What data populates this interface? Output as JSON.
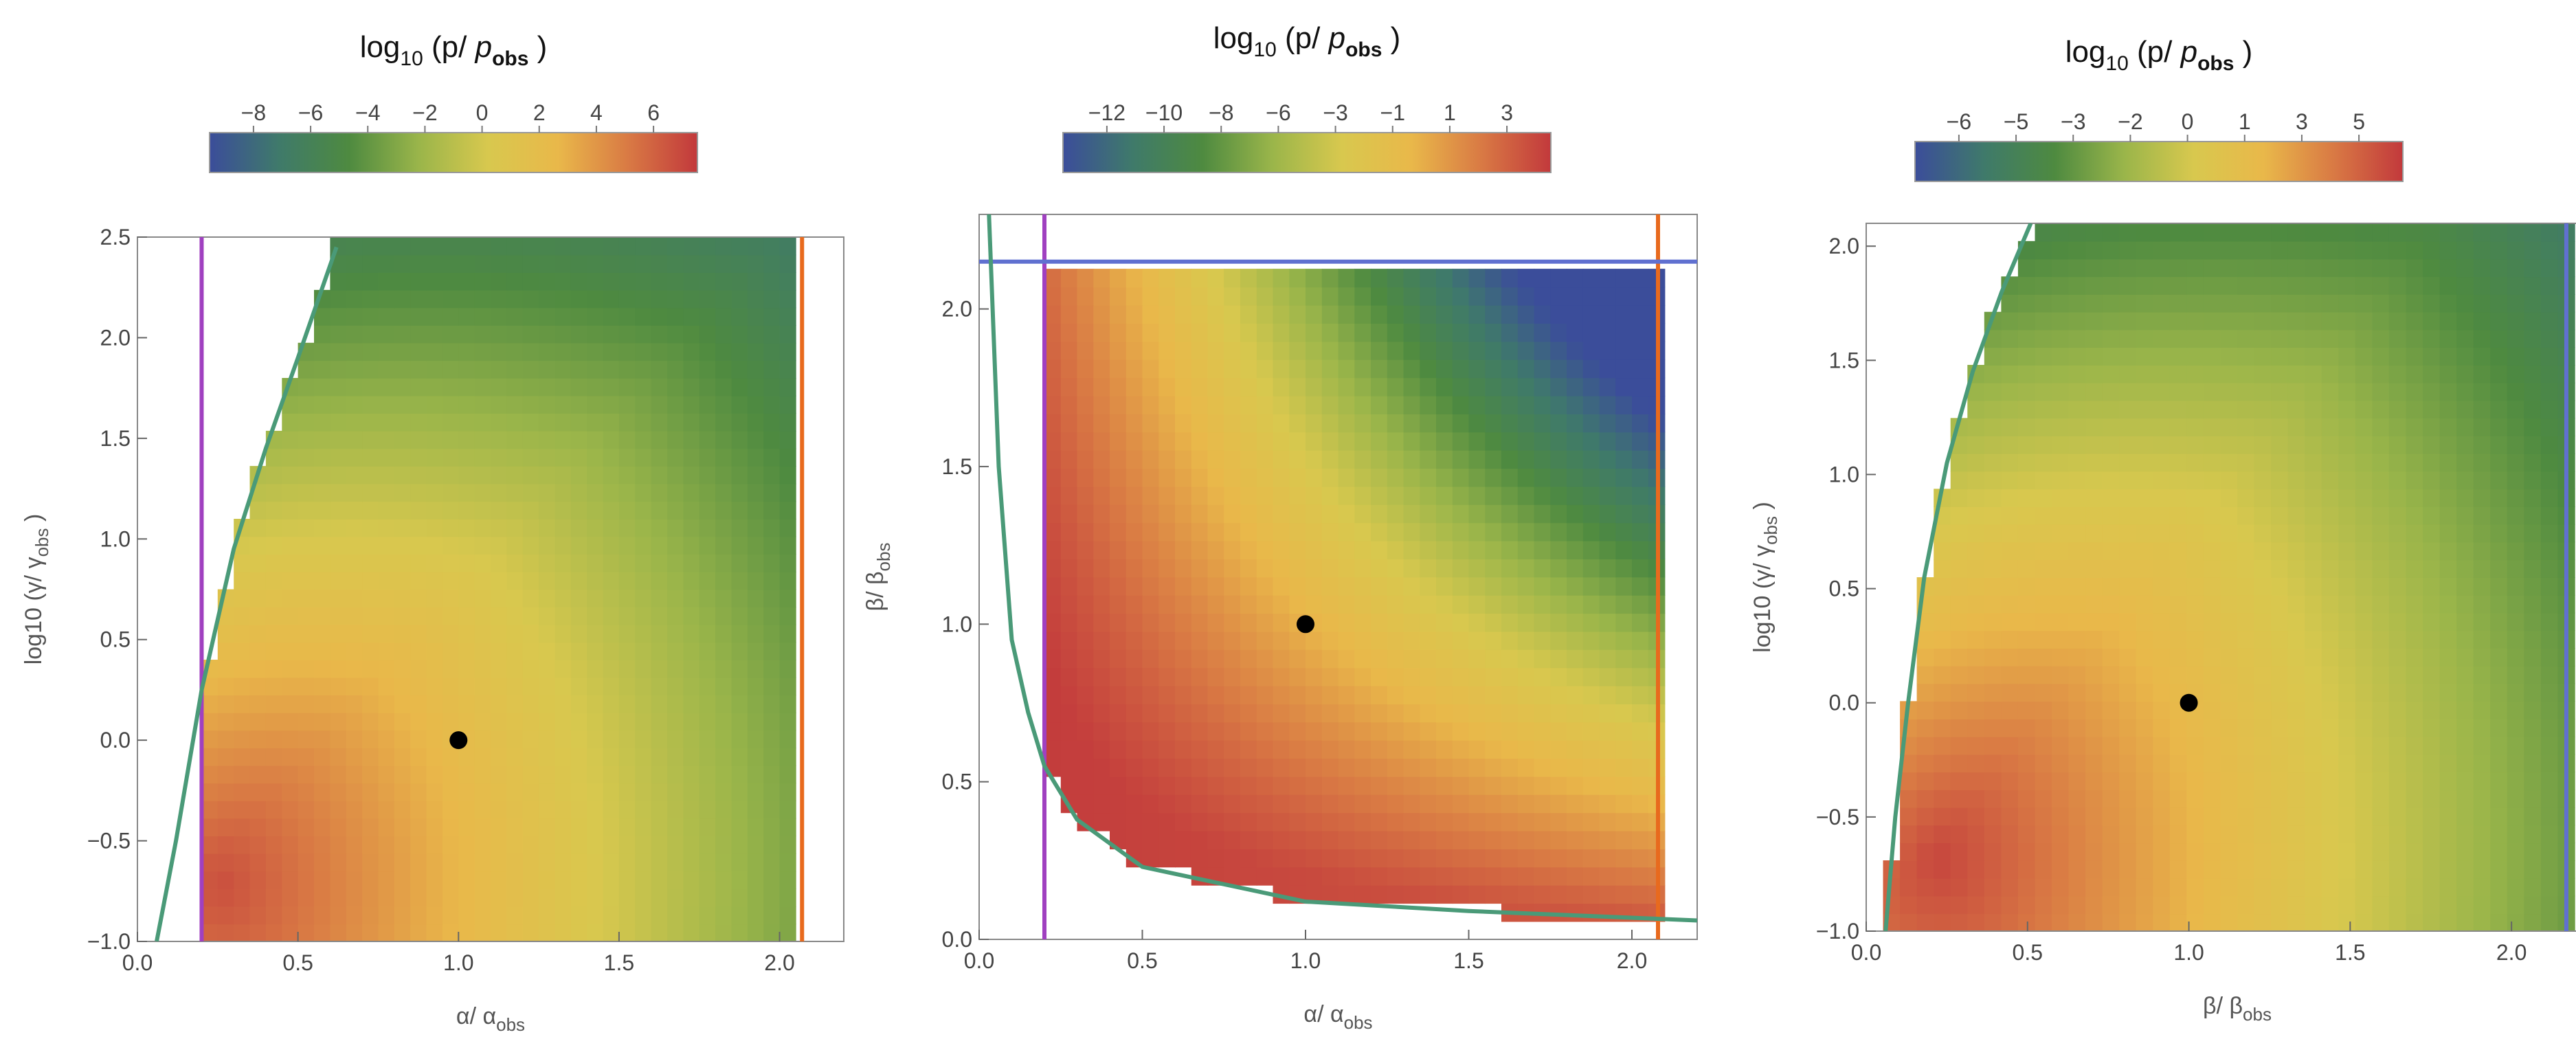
{
  "chart_data": [
    {
      "type": "heatmap",
      "colorbar": {
        "title": "log10 (p/ pobs )",
        "title_parts": {
          "prefix": "log",
          "sub": "10",
          "mid": " (p/ ",
          "italic": "p",
          "sub2": "obs",
          "suffix": " )"
        },
        "ticks": [
          "−8",
          "−6",
          "−4",
          "−2",
          "0",
          "2",
          "4",
          "6"
        ],
        "range": [
          -9.5,
          7.5
        ]
      },
      "xlabel": {
        "main": "α/ α",
        "sub": "obs"
      },
      "ylabel": {
        "main": "log10 (γ/ γ",
        "sub": "obs",
        "suffix": " )"
      },
      "xlim": [
        0.0,
        2.2
      ],
      "ylim": [
        -1.0,
        2.5
      ],
      "xticks": [
        "0.0",
        "0.5",
        "1.0",
        "1.5",
        "2.0"
      ],
      "yticks": [
        "−1.0",
        "−0.5",
        "0.0",
        "0.5",
        "1.0",
        "1.5",
        "2.0",
        "2.5"
      ],
      "reference_point": {
        "x": 1.0,
        "y": 0.0
      },
      "bounds": {
        "vertical_lines": [
          {
            "x": 0.2,
            "color": "#a040c0"
          },
          {
            "x": 2.07,
            "color": "#e86a1e"
          }
        ],
        "boundary_curve": {
          "color": "#4a9a78",
          "points": [
            [
              0.06,
              -1.0
            ],
            [
              0.12,
              -0.5
            ],
            [
              0.2,
              0.25
            ],
            [
              0.3,
              0.95
            ],
            [
              0.4,
              1.45
            ],
            [
              0.5,
              1.9
            ],
            [
              0.62,
              2.45
            ]
          ]
        }
      }
    },
    {
      "type": "heatmap",
      "colorbar": {
        "title": "log10 (p/ pobs )",
        "title_parts": {
          "prefix": "log",
          "sub": "10",
          "mid": " (p/ ",
          "italic": "p",
          "sub2": "obs",
          "suffix": " )"
        },
        "ticks": [
          "−12",
          "−10",
          "−8",
          "−6",
          "−3",
          "−1",
          "1",
          "3"
        ],
        "range": [
          -14,
          4.5
        ]
      },
      "xlabel": {
        "main": "α/ α",
        "sub": "obs"
      },
      "ylabel": {
        "main": "β/ β",
        "sub": "obs",
        "suffix": ""
      },
      "xlim": [
        0.0,
        2.2
      ],
      "ylim": [
        0.0,
        2.3
      ],
      "xticks": [
        "0.0",
        "0.5",
        "1.0",
        "1.5",
        "2.0"
      ],
      "yticks": [
        "0.0",
        "0.5",
        "1.0",
        "1.5",
        "2.0"
      ],
      "reference_point": {
        "x": 1.0,
        "y": 1.0
      },
      "bounds": {
        "vertical_lines": [
          {
            "x": 0.2,
            "color": "#a040c0"
          },
          {
            "x": 2.08,
            "color": "#e86a1e"
          }
        ],
        "horizontal_lines": [
          {
            "y": 2.15,
            "color": "#6070d0"
          }
        ],
        "boundary_curve": {
          "color": "#4a9a78",
          "points": [
            [
              0.03,
              2.3
            ],
            [
              0.06,
              1.5
            ],
            [
              0.1,
              0.95
            ],
            [
              0.15,
              0.72
            ],
            [
              0.2,
              0.55
            ],
            [
              0.3,
              0.38
            ],
            [
              0.5,
              0.23
            ],
            [
              1.0,
              0.12
            ],
            [
              1.5,
              0.09
            ],
            [
              2.2,
              0.06
            ]
          ]
        }
      }
    },
    {
      "type": "heatmap",
      "colorbar": {
        "title": "log10 (p/ pobs )",
        "title_parts": {
          "prefix": "log",
          "sub": "10",
          "mid": " (p/ ",
          "italic": "p",
          "sub2": "obs",
          "suffix": " )"
        },
        "ticks": [
          "−6",
          "−5",
          "−3",
          "−2",
          "0",
          "1",
          "3",
          "5"
        ],
        "range": [
          -7,
          6.5
        ]
      },
      "xlabel": {
        "main": "β/ β",
        "sub": "obs"
      },
      "ylabel": {
        "main": "log10 (γ/ γ",
        "sub": "obs",
        "suffix": " )"
      },
      "xlim": [
        0.0,
        2.3
      ],
      "ylim": [
        -1.0,
        2.1
      ],
      "xticks": [
        "0.0",
        "0.5",
        "1.0",
        "1.5",
        "2.0"
      ],
      "yticks": [
        "−1.0",
        "−0.5",
        "0.0",
        "0.5",
        "1.0",
        "1.5",
        "2.0"
      ],
      "reference_point": {
        "x": 1.0,
        "y": 0.0
      },
      "bounds": {
        "vertical_lines": [
          {
            "x": 2.17,
            "color": "#6070d0"
          }
        ],
        "boundary_curve": {
          "color": "#4a9a78",
          "points": [
            [
              0.06,
              -1.0
            ],
            [
              0.09,
              -0.5
            ],
            [
              0.13,
              0.0
            ],
            [
              0.18,
              0.55
            ],
            [
              0.25,
              1.05
            ],
            [
              0.33,
              1.45
            ],
            [
              0.42,
              1.8
            ],
            [
              0.51,
              2.1
            ]
          ]
        }
      }
    }
  ],
  "colormap": [
    "#3b4d9a",
    "#3f7a6a",
    "#4e8a40",
    "#9ab54a",
    "#d8c84e",
    "#e9b84a",
    "#d97a44",
    "#c2393c"
  ]
}
